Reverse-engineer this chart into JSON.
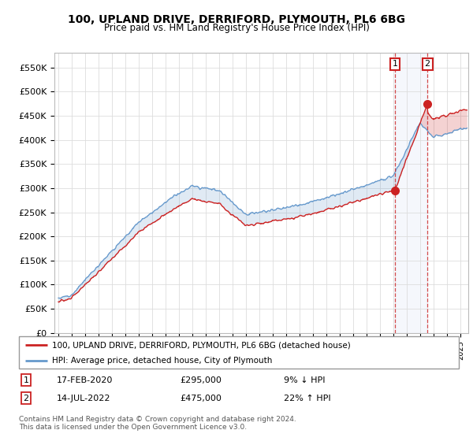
{
  "title": "100, UPLAND DRIVE, DERRIFORD, PLYMOUTH, PL6 6BG",
  "subtitle": "Price paid vs. HM Land Registry's House Price Index (HPI)",
  "ylabel_ticks": [
    "£0",
    "£50K",
    "£100K",
    "£150K",
    "£200K",
    "£250K",
    "£300K",
    "£350K",
    "£400K",
    "£450K",
    "£500K",
    "£550K"
  ],
  "ytick_values": [
    0,
    50000,
    100000,
    150000,
    200000,
    250000,
    300000,
    350000,
    400000,
    450000,
    500000,
    550000
  ],
  "ylim": [
    0,
    580000
  ],
  "hpi_color": "#6699cc",
  "price_color": "#cc2222",
  "shade_color": "#c8d8f0",
  "marker1_x": 2020.12,
  "marker2_x": 2022.55,
  "marker1_price": 295000,
  "marker2_price": 475000,
  "legend_line1": "100, UPLAND DRIVE, DERRIFORD, PLYMOUTH, PL6 6BG (detached house)",
  "legend_line2": "HPI: Average price, detached house, City of Plymouth",
  "note1_date": "17-FEB-2020",
  "note1_price": "£295,000",
  "note1_hpi": "9% ↓ HPI",
  "note2_date": "14-JUL-2022",
  "note2_price": "£475,000",
  "note2_hpi": "22% ↑ HPI",
  "footer": "Contains HM Land Registry data © Crown copyright and database right 2024.\nThis data is licensed under the Open Government Licence v3.0.",
  "grid_color": "#dddddd"
}
